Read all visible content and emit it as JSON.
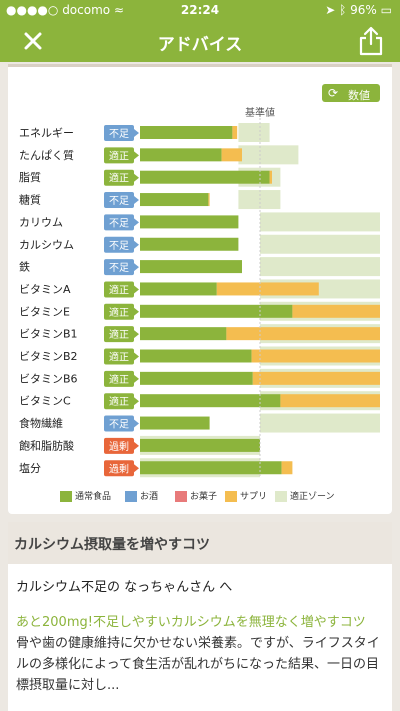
{
  "status": {
    "carrier": "docomo",
    "time": "22:24",
    "battery": "96%"
  },
  "nav": {
    "title": "アドバイス"
  },
  "chart_panel": {
    "value_button": "数値"
  },
  "chart_data": {
    "type": "bar",
    "orientation": "horizontal",
    "stacked": true,
    "baseline_label": "基準値",
    "categories": [
      "エネルギー",
      "たんぱく質",
      "脂質",
      "糖質",
      "カリウム",
      "カルシウム",
      "鉄",
      "ビタミンA",
      "ビタミンE",
      "ビタミンB1",
      "ビタミンB2",
      "ビタミンB6",
      "ビタミンC",
      "食物繊維",
      "飽和脂肪酸",
      "塩分"
    ],
    "status": [
      "不足",
      "適正",
      "適正",
      "不足",
      "不足",
      "不足",
      "不足",
      "適正",
      "適正",
      "適正",
      "適正",
      "適正",
      "適正",
      "不足",
      "過剰",
      "過剰"
    ],
    "status_colors": {
      "不足": "#6fa0d2",
      "適正": "#8cb43c",
      "過剰": "#e8663a"
    },
    "series": [
      {
        "name": "通常食品",
        "color": "#8cb43c",
        "values": [
          77,
          68,
          108,
          57,
          82,
          82,
          85,
          64,
          127,
          72,
          93,
          94,
          117,
          58,
          100,
          118
        ]
      },
      {
        "name": "お酒",
        "color": "#6fa0d2",
        "values": [
          0,
          0,
          0,
          0,
          0,
          0,
          0,
          0,
          0,
          0,
          0,
          0,
          0,
          0,
          0,
          0
        ]
      },
      {
        "name": "お菓子",
        "color": "#e87a7a",
        "values": [
          0,
          0,
          0,
          0,
          0,
          0,
          0,
          0,
          0,
          0,
          0,
          0,
          0,
          0,
          0,
          0
        ]
      },
      {
        "name": "サプリ",
        "color": "#f4bd50",
        "values": [
          4,
          17,
          2,
          1,
          0,
          0,
          0,
          85,
          73,
          128,
          107,
          106,
          83,
          0,
          0,
          9
        ]
      }
    ],
    "zones": [
      [
        82,
        108
      ],
      [
        82,
        132
      ],
      [
        82,
        117
      ],
      [
        82,
        117
      ],
      [
        100,
        200
      ],
      [
        100,
        200
      ],
      [
        100,
        200
      ],
      [
        100,
        200
      ],
      [
        100,
        200
      ],
      [
        100,
        200
      ],
      [
        100,
        200
      ],
      [
        100,
        200
      ],
      [
        100,
        200
      ],
      [
        100,
        200
      ],
      [
        0,
        100
      ],
      [
        0,
        100
      ]
    ],
    "zone_series": {
      "name": "適正ゾーン",
      "color": "#dfe9ca"
    },
    "xlim": [
      0,
      200
    ]
  },
  "advice": {
    "heading": "カルシウム摂取量を増やすコツ",
    "greeting": "カルシウム不足の なっちゃんさん へ",
    "lead": "あと200mg!不足しやすいカルシウムを無理なく増やすコツ",
    "body": "骨や歯の健康維持に欠かせない栄養素。ですが、ライフスタイルの多様化によって食生活が乱れがちになった結果、一日の目標摂取量に対し..."
  }
}
